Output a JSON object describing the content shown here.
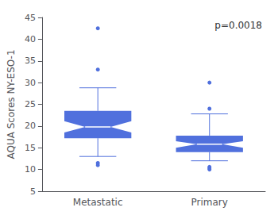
{
  "chart_data": {
    "type": "boxplot",
    "ylabel": "AQUA Scores NY-ESO-1",
    "categories": [
      "Metastatic",
      "Primary"
    ],
    "ylim": [
      5,
      45
    ],
    "yticks": [
      5,
      10,
      15,
      20,
      25,
      30,
      35,
      40,
      45
    ],
    "grid": false,
    "annotation": "p=0.0018",
    "boxes": [
      {
        "q1": 17.2,
        "median": 19.8,
        "q3": 23.5,
        "whisker_low": 13.0,
        "whisker_high": 28.8,
        "notch_low": 18.5,
        "notch_high": 21.1,
        "outliers": [
          11.0,
          11.5,
          33.0,
          42.5
        ]
      },
      {
        "q1": 14.0,
        "median": 15.8,
        "q3": 17.8,
        "whisker_low": 12.0,
        "whisker_high": 22.8,
        "notch_low": 15.0,
        "notch_high": 16.5,
        "outliers": [
          10.0,
          10.3,
          10.6,
          24.0,
          30.0
        ]
      }
    ]
  }
}
